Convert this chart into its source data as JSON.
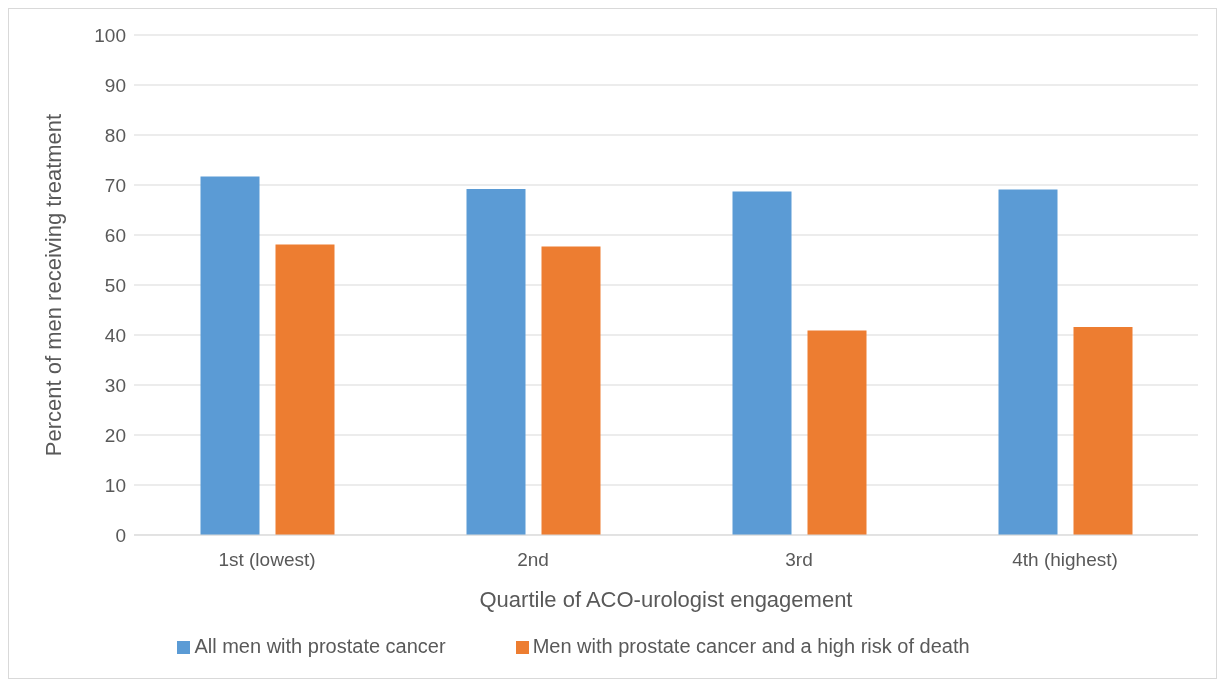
{
  "chart_data": {
    "type": "bar",
    "xlabel": "Quartile of ACO-urologist engagement",
    "ylabel": "Percent of men receiving treatment",
    "categories": [
      "1st (lowest)",
      "2nd",
      "3rd",
      "4th (highest)"
    ],
    "series": [
      {
        "name": "All men with prostate cancer",
        "color": "#5b9bd5",
        "values": [
          71.7,
          69.2,
          68.7,
          69.1
        ]
      },
      {
        "name": "Men with prostate cancer and a high risk of death",
        "color": "#ed7d31",
        "values": [
          58.1,
          57.7,
          40.9,
          41.6
        ]
      }
    ],
    "ylim": [
      0,
      100
    ],
    "yticks": [
      0,
      10,
      20,
      30,
      40,
      50,
      60,
      70,
      80,
      90,
      100
    ],
    "grid": "y",
    "legend": "bottom"
  }
}
